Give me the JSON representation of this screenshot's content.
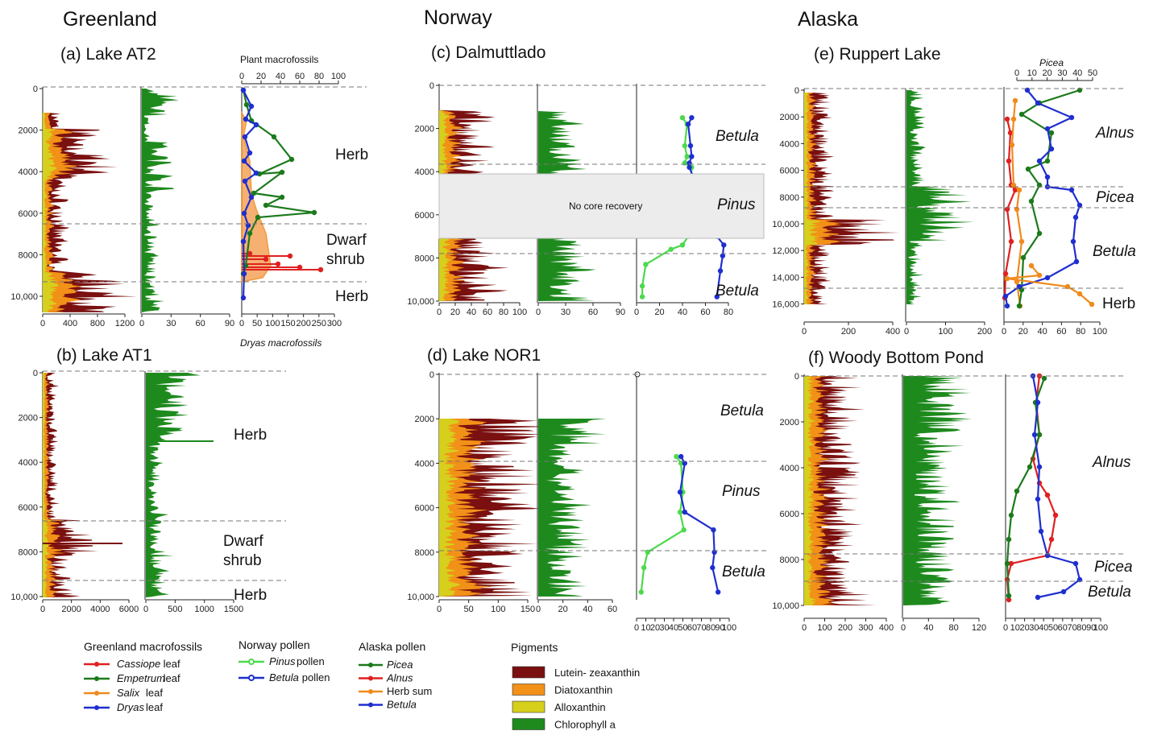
{
  "titles": {
    "greenland": "Greenland",
    "norway": "Norway",
    "alaska": "Alaska"
  },
  "panels": {
    "a": "(a) Lake AT2",
    "b": "(b) Lake AT1",
    "c": "(c) Dalmuttlado",
    "d": "(d) Lake NOR1",
    "e": "(e) Ruppert Lake",
    "f": "(f) Woody Bottom Pond"
  },
  "axis_titles": {
    "plant": "Plant macrofossils",
    "dryas": "Dryas macrofossils",
    "picea": "Picea"
  },
  "no_core": "No core recovery",
  "zones": {
    "a": [
      "Herb",
      "Dwarf",
      "shrub",
      "Herb"
    ],
    "b": [
      "Herb",
      "Dwarf",
      "shrub",
      "Herb"
    ],
    "c": [
      "Betula",
      "Pinus",
      "Betula"
    ],
    "d": [
      "Betula",
      "Pinus",
      "Betula"
    ],
    "e": [
      "Alnus",
      "Picea",
      "Betula",
      "Herb"
    ],
    "f": [
      "Alnus",
      "Picea",
      "Betula"
    ]
  },
  "ticks": {
    "age_a": [
      "0",
      "2000",
      "4000",
      "6000",
      "8000",
      "10,000"
    ],
    "age_b": [
      "0",
      "2000",
      "4000",
      "6000",
      "8000",
      "10,000"
    ],
    "age_c": [
      "0",
      "2000",
      "4000",
      "6000",
      "8000",
      "10,000"
    ],
    "age_d": [
      "0",
      "2000",
      "4000",
      "6000",
      "8000",
      "10,000"
    ],
    "age_e": [
      "0",
      "2000",
      "4000",
      "6000",
      "8000",
      "10,000",
      "12,000",
      "14,000",
      "16,000"
    ],
    "age_f": [
      "0",
      "2000",
      "4000",
      "6000",
      "8000",
      "10,000"
    ],
    "a1": [
      "0",
      "400",
      "800",
      "1200"
    ],
    "a2": [
      "0",
      "30",
      "60",
      "90"
    ],
    "a3": [
      "0",
      "50",
      "100",
      "150",
      "200",
      "250",
      "300"
    ],
    "a3top": [
      "0",
      "20",
      "40",
      "60",
      "80",
      "100"
    ],
    "b1": [
      "0",
      "2000",
      "4000",
      "6000"
    ],
    "b2": [
      "0",
      "500",
      "1000",
      "1500"
    ],
    "c1": [
      "0",
      "20",
      "40",
      "60",
      "80",
      "100"
    ],
    "c2": [
      "0",
      "30",
      "60",
      "90"
    ],
    "c3": [
      "0",
      "20",
      "40",
      "60",
      "80"
    ],
    "d1": [
      "0",
      "50",
      "100",
      "150"
    ],
    "d2": [
      "0",
      "20",
      "40",
      "60"
    ],
    "d3": [
      "0",
      "10",
      "20",
      "30",
      "40",
      "50",
      "60",
      "70",
      "80",
      "90",
      "100"
    ],
    "e1": [
      "0",
      "200",
      "400"
    ],
    "e2": [
      "0",
      "100",
      "200"
    ],
    "e3": [
      "0",
      "20",
      "40",
      "60",
      "80",
      "100"
    ],
    "e3top": [
      "0",
      "10",
      "20",
      "30",
      "40",
      "50"
    ],
    "f1": [
      "0",
      "100",
      "200",
      "300",
      "400"
    ],
    "f2": [
      "0",
      "40",
      "80",
      "120"
    ],
    "f3": [
      "0",
      "10",
      "20",
      "30",
      "40",
      "50",
      "60",
      "70",
      "80",
      "90",
      "100"
    ]
  },
  "legend": {
    "greenland_title": "Greenland macrofossils",
    "greenland": [
      {
        "name": "Cassiope",
        "suffix": " leaf",
        "color": "#e02020"
      },
      {
        "name": "Empetrum",
        "suffix": " leaf",
        "color": "#1b7a1b"
      },
      {
        "name": "Salix",
        "suffix": " leaf",
        "color": "#f08a1c"
      },
      {
        "name": "Dryas",
        "suffix": " leaf",
        "color": "#1f2fcf"
      }
    ],
    "norway_title": "Norway pollen",
    "norway": [
      {
        "name": "Pinus",
        "suffix": " pollen",
        "color": "#4cd94c"
      },
      {
        "name": "Betula",
        "suffix": " pollen",
        "color": "#1f2fcf"
      }
    ],
    "alaska_title": "Alaska pollen",
    "alaska": [
      {
        "name": "Picea",
        "suffix": "",
        "color": "#1b7a1b"
      },
      {
        "name": "Alnus",
        "suffix": "",
        "color": "#e02020"
      },
      {
        "name": "Herb sum",
        "suffix": "",
        "color": "#f08a1c"
      },
      {
        "name": "Betula",
        "suffix": "",
        "color": "#1f2fcf"
      }
    ],
    "pigments_title": "Pigments",
    "pigments": [
      {
        "name": "Lutein- zeaxanthin",
        "color": "#7a1010"
      },
      {
        "name": "Diatoxanthin",
        "color": "#f29118"
      },
      {
        "name": "Alloxanthin",
        "color": "#d6cf1c"
      },
      {
        "name": "Chlorophyll a",
        "color": "#1e8a1e"
      }
    ]
  },
  "colors": {
    "lutein": "#7a1010",
    "diatox": "#f29118",
    "allox": "#d6cf1c",
    "chl": "#1e8a1e",
    "red": "#e02020",
    "green": "#1b7a1b",
    "orange": "#f08a1c",
    "blue": "#1f2fcf",
    "lime": "#4cd94c"
  },
  "chart_data": [
    {
      "type": "area",
      "panel": "(a) Lake AT2",
      "xlabel": "Plant macrofossils",
      "x2label": "Dryas macrofossils",
      "series": [
        {
          "name": "Dryas",
          "x": [
            5,
            30,
            40,
            20,
            25,
            10,
            5,
            20,
            5,
            10
          ],
          "y": [
            0,
            500,
            1100,
            1500,
            2300,
            3300,
            4300,
            5300,
            6300,
            9300
          ]
        },
        {
          "name": "Empetrum",
          "x": [
            5,
            10,
            20,
            45,
            55,
            40,
            30,
            20,
            10,
            5
          ],
          "y": [
            500,
            1200,
            1800,
            2500,
            3300,
            4300,
            5300,
            6300,
            7300,
            9300
          ]
        },
        {
          "name": "Cassiope",
          "x": [
            2,
            3,
            5,
            10,
            20,
            40,
            70,
            90,
            60,
            10
          ],
          "y": [
            1000,
            2000,
            3000,
            4000,
            5000,
            6000,
            7000,
            8000,
            8500,
            9500
          ]
        }
      ]
    },
    {
      "type": "line",
      "panel": "(c) Dalmuttlado",
      "series": [
        {
          "name": "Pinus",
          "x": [
            40,
            44,
            42,
            44,
            42,
            48,
            45,
            40,
            30,
            8,
            5,
            5
          ],
          "y": [
            1500,
            1800,
            2800,
            3300,
            3600,
            3800,
            7000,
            7400,
            7600,
            8300,
            9300,
            9800
          ]
        },
        {
          "name": "Betula",
          "x": [
            48,
            45,
            47,
            48,
            46,
            46,
            70,
            76,
            75,
            73,
            70
          ],
          "y": [
            1500,
            1800,
            2800,
            3300,
            3600,
            3800,
            7000,
            7400,
            7900,
            8600,
            9800
          ]
        }
      ]
    },
    {
      "type": "line",
      "panel": "(d) Lake NOR1",
      "series": [
        {
          "name": "Pinus",
          "x": [
            43,
            48,
            50,
            47,
            51,
            12,
            8,
            5
          ],
          "y": [
            3700,
            4000,
            5300,
            6200,
            7000,
            8000,
            8700,
            9800
          ]
        },
        {
          "name": "Betula",
          "x": [
            48,
            52,
            47,
            52,
            83,
            84,
            82,
            88
          ],
          "y": [
            3700,
            4000,
            5300,
            6200,
            7000,
            8000,
            8700,
            9800
          ]
        }
      ]
    }
  ]
}
